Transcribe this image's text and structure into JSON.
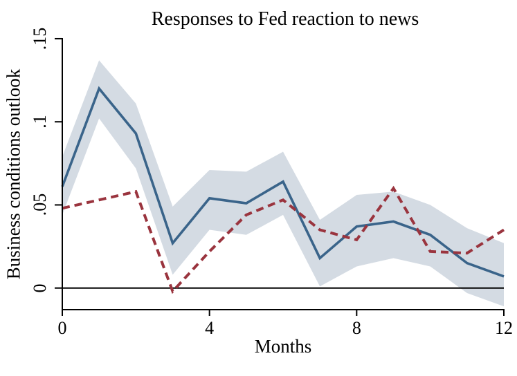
{
  "figure": {
    "background": "#ffffff",
    "text_color": "#000000"
  },
  "chart_data": {
    "type": "line",
    "title": "Responses to Fed reaction to news",
    "xlabel": "Months",
    "ylabel": "Business conditions outlook",
    "grid": false,
    "legend": "none",
    "xlim": [
      0,
      12
    ],
    "ylim": [
      -0.013,
      0.1504
    ],
    "x": [
      0,
      1,
      2,
      3,
      4,
      5,
      6,
      7,
      8,
      9,
      10,
      11,
      12
    ],
    "series": [
      {
        "name": "solid-response",
        "style": "solid",
        "color": "#3a648a",
        "width": 3.6,
        "dash": "",
        "values": [
          0.061,
          0.12,
          0.093,
          0.027,
          0.054,
          0.051,
          0.064,
          0.018,
          0.037,
          0.04,
          0.032,
          0.015,
          0.007
        ]
      },
      {
        "name": "dashed-response",
        "style": "dashed",
        "color": "#9a343e",
        "width": 4,
        "dash": "11 7",
        "values": [
          0.048,
          0.053,
          0.058,
          -0.002,
          0.022,
          0.044,
          0.053,
          0.035,
          0.029,
          0.06,
          0.022,
          0.021,
          0.035
        ]
      }
    ],
    "band": {
      "name": "confidence-band",
      "color": "#d4dbe3",
      "upper": [
        0.079,
        0.137,
        0.111,
        0.049,
        0.071,
        0.07,
        0.082,
        0.041,
        0.056,
        0.058,
        0.05,
        0.036,
        0.027
      ],
      "lower": [
        0.044,
        0.102,
        0.072,
        0.008,
        0.035,
        0.032,
        0.044,
        0.001,
        0.013,
        0.018,
        0.013,
        -0.003,
        -0.011
      ]
    },
    "zero_line": 0,
    "axis_color": "#000000",
    "xticks": {
      "values": [
        0,
        4,
        8,
        12
      ],
      "labels": [
        "0",
        "4",
        "8",
        "12"
      ]
    },
    "yticks": {
      "values": [
        0,
        0.05,
        0.1,
        0.15
      ],
      "labels": [
        "0",
        ".05",
        ".1",
        ".15"
      ]
    }
  }
}
